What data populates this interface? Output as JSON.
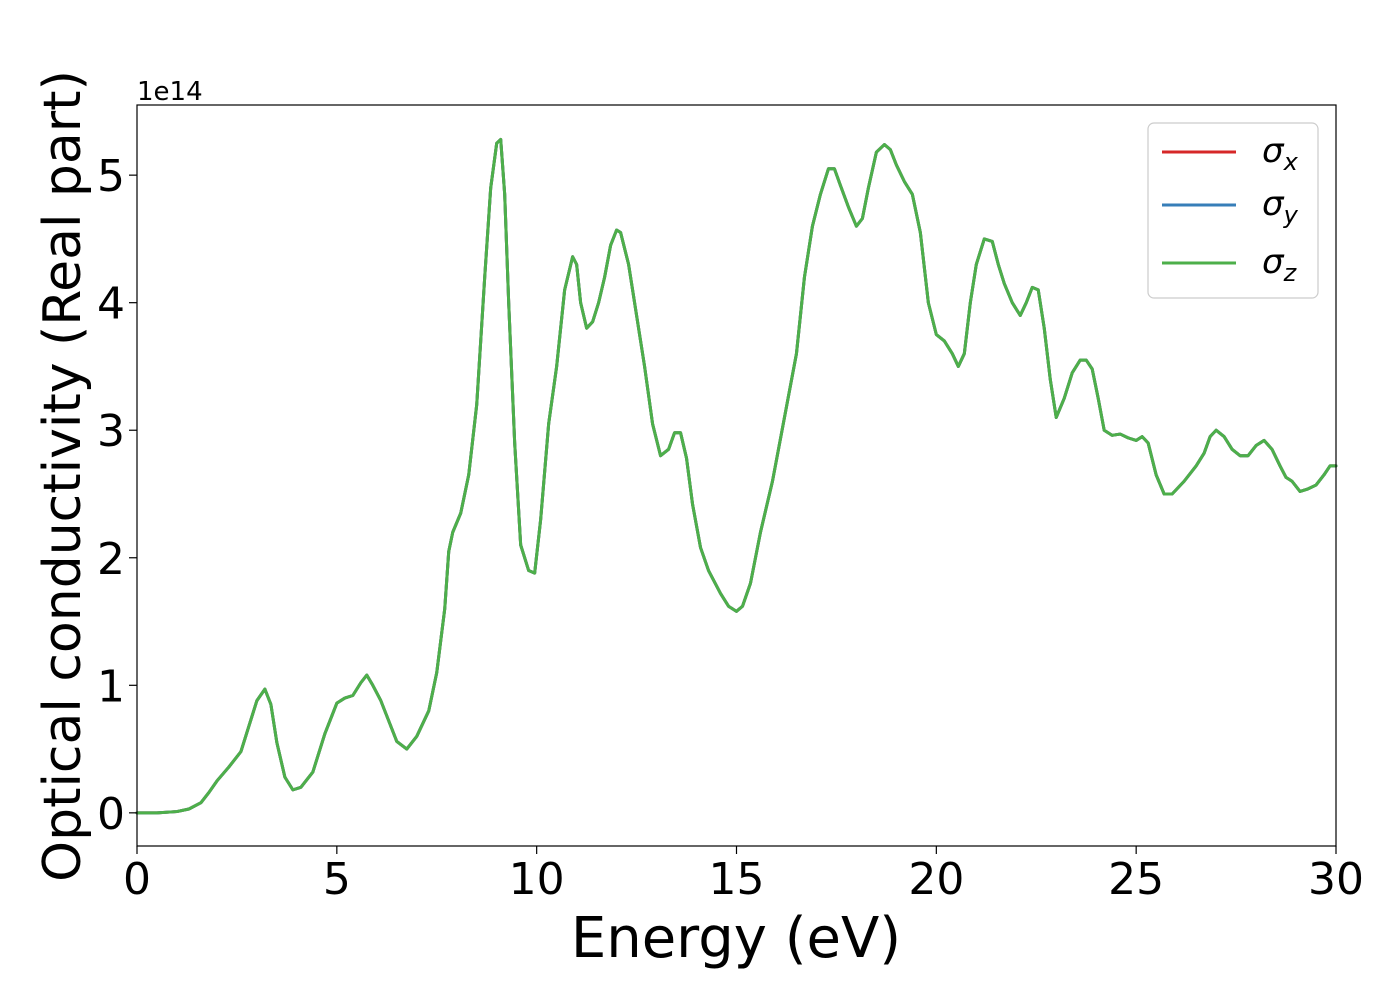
{
  "chart_data": {
    "type": "line",
    "title": "",
    "xlabel": "Energy (eV)",
    "ylabel": "Optical conductivity (Real part)",
    "offset_label": "1e14",
    "xlim": [
      0,
      30
    ],
    "ylim": [
      -0.26,
      5.55
    ],
    "xticks": [
      0,
      5,
      10,
      15,
      20,
      25,
      30
    ],
    "yticks": [
      0,
      1,
      2,
      3,
      4,
      5
    ],
    "grid": false,
    "legend_position": "top-right",
    "series": [
      {
        "name": "σ_x",
        "label_base": "σ",
        "label_sub": "x",
        "color": "#d62728"
      },
      {
        "name": "σ_y",
        "label_base": "σ",
        "label_sub": "y",
        "color": "#377eb8"
      },
      {
        "name": "σ_z",
        "label_base": "σ",
        "label_sub": "z",
        "color": "#4daf4a"
      }
    ],
    "x": [
      0,
      0.5,
      1.0,
      1.3,
      1.6,
      1.8,
      2.0,
      2.3,
      2.6,
      2.8,
      3.0,
      3.2,
      3.35,
      3.5,
      3.7,
      3.9,
      4.1,
      4.4,
      4.7,
      5.0,
      5.2,
      5.4,
      5.6,
      5.75,
      5.9,
      6.1,
      6.3,
      6.5,
      6.75,
      7.0,
      7.3,
      7.5,
      7.7,
      7.8,
      7.9,
      8.1,
      8.3,
      8.5,
      8.7,
      8.85,
      9.0,
      9.1,
      9.2,
      9.3,
      9.45,
      9.6,
      9.8,
      9.95,
      10.1,
      10.3,
      10.5,
      10.7,
      10.9,
      11.0,
      11.1,
      11.25,
      11.4,
      11.55,
      11.7,
      11.85,
      12.0,
      12.1,
      12.3,
      12.5,
      12.7,
      12.9,
      13.1,
      13.3,
      13.45,
      13.6,
      13.75,
      13.9,
      14.1,
      14.3,
      14.6,
      14.8,
      15.0,
      15.15,
      15.35,
      15.6,
      15.9,
      16.2,
      16.5,
      16.7,
      16.9,
      17.1,
      17.3,
      17.45,
      17.6,
      17.8,
      18.0,
      18.15,
      18.3,
      18.5,
      18.7,
      18.85,
      19.0,
      19.2,
      19.4,
      19.6,
      19.8,
      20.0,
      20.2,
      20.4,
      20.55,
      20.7,
      20.85,
      21.0,
      21.2,
      21.4,
      21.55,
      21.7,
      21.9,
      22.1,
      22.25,
      22.4,
      22.55,
      22.7,
      22.85,
      23.0,
      23.2,
      23.4,
      23.6,
      23.75,
      23.9,
      24.05,
      24.2,
      24.4,
      24.6,
      24.8,
      25.0,
      25.15,
      25.3,
      25.5,
      25.7,
      25.9,
      26.2,
      26.5,
      26.7,
      26.85,
      27.0,
      27.2,
      27.4,
      27.6,
      27.8,
      28.0,
      28.2,
      28.4,
      28.6,
      28.75,
      28.9,
      29.1,
      29.3,
      29.5,
      29.7,
      29.85,
      30.0
    ],
    "values": [
      0.0,
      0.0,
      0.01,
      0.03,
      0.08,
      0.16,
      0.25,
      0.36,
      0.48,
      0.68,
      0.88,
      0.97,
      0.85,
      0.55,
      0.28,
      0.18,
      0.2,
      0.32,
      0.62,
      0.86,
      0.9,
      0.92,
      1.02,
      1.08,
      1.0,
      0.88,
      0.72,
      0.56,
      0.5,
      0.6,
      0.8,
      1.1,
      1.6,
      2.05,
      2.2,
      2.35,
      2.65,
      3.2,
      4.2,
      4.9,
      5.25,
      5.28,
      4.85,
      4.0,
      2.9,
      2.1,
      1.9,
      1.88,
      2.3,
      3.05,
      3.5,
      4.1,
      4.36,
      4.3,
      4.0,
      3.8,
      3.85,
      4.0,
      4.2,
      4.45,
      4.57,
      4.55,
      4.3,
      3.9,
      3.5,
      3.05,
      2.8,
      2.85,
      2.98,
      2.98,
      2.78,
      2.42,
      2.08,
      1.9,
      1.72,
      1.62,
      1.58,
      1.62,
      1.8,
      2.2,
      2.6,
      3.1,
      3.6,
      4.2,
      4.6,
      4.85,
      5.05,
      5.05,
      4.92,
      4.75,
      4.6,
      4.66,
      4.9,
      5.18,
      5.24,
      5.2,
      5.08,
      4.95,
      4.85,
      4.55,
      4.0,
      3.75,
      3.7,
      3.6,
      3.5,
      3.6,
      4.0,
      4.3,
      4.5,
      4.48,
      4.3,
      4.15,
      4.0,
      3.9,
      4.0,
      4.12,
      4.1,
      3.8,
      3.4,
      3.1,
      3.25,
      3.45,
      3.55,
      3.55,
      3.48,
      3.25,
      3.0,
      2.96,
      2.97,
      2.94,
      2.92,
      2.95,
      2.9,
      2.65,
      2.5,
      2.5,
      2.6,
      2.72,
      2.82,
      2.95,
      3.0,
      2.95,
      2.85,
      2.8,
      2.8,
      2.88,
      2.92,
      2.85,
      2.72,
      2.63,
      2.6,
      2.52,
      2.54,
      2.57,
      2.65,
      2.72,
      2.72
    ]
  }
}
